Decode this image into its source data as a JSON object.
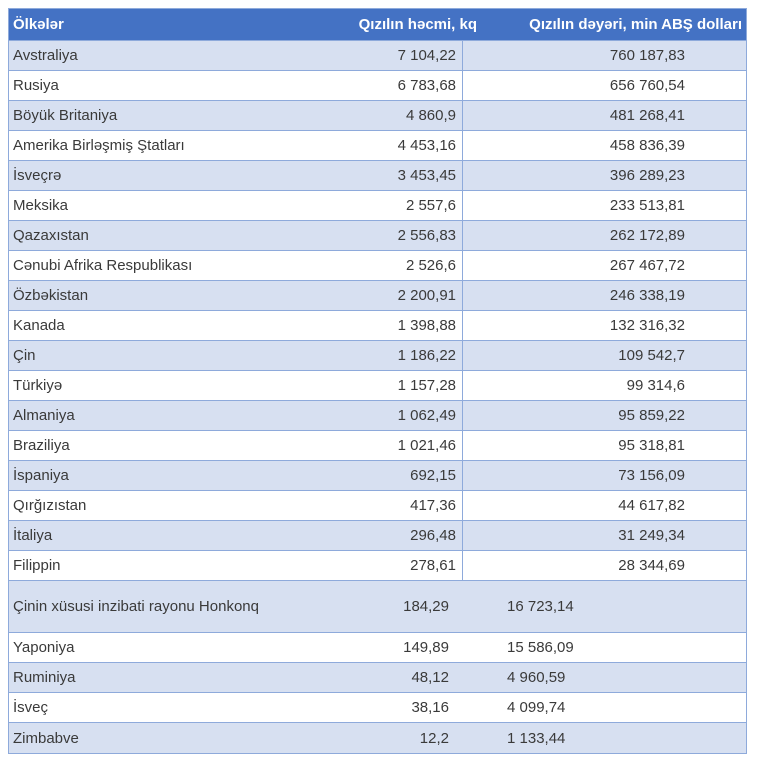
{
  "table": {
    "columns": {
      "country": "Ölkələr",
      "volume": "Qızılın həcmi, kq",
      "value": "Qızılın dəyəri, min ABŞ dolları"
    },
    "rows": [
      {
        "country": "Avstraliya",
        "volume": "7 104,22",
        "value": "760 187,83"
      },
      {
        "country": "Rusiya",
        "volume": "6 783,68",
        "value": "656 760,54"
      },
      {
        "country": "Böyük Britaniya",
        "volume": "4 860,9",
        "value": "481 268,41"
      },
      {
        "country": "Amerika Birləşmiş Ştatları",
        "volume": "4 453,16",
        "value": "458 836,39"
      },
      {
        "country": "İsveçrə",
        "volume": "3 453,45",
        "value": "396 289,23"
      },
      {
        "country": "Meksika",
        "volume": "2 557,6",
        "value": "233 513,81"
      },
      {
        "country": "Qazaxıstan",
        "volume": "2 556,83",
        "value": "262 172,89"
      },
      {
        "country": "Cənubi Afrika Respublikası",
        "volume": "2 526,6",
        "value": "267 467,72"
      },
      {
        "country": "Özbəkistan",
        "volume": "2 200,91",
        "value": "246 338,19"
      },
      {
        "country": "Kanada",
        "volume": "1 398,88",
        "value": "132 316,32"
      },
      {
        "country": "Çin",
        "volume": "1 186,22",
        "value": "109 542,7"
      },
      {
        "country": "Türkiyə",
        "volume": "1 157,28",
        "value": "99 314,6"
      },
      {
        "country": "Almaniya",
        "volume": "1 062,49",
        "value": "95 859,22"
      },
      {
        "country": "Braziliya",
        "volume": "1 021,46",
        "value": "95 318,81"
      },
      {
        "country": "İspaniya",
        "volume": "692,15",
        "value": "73 156,09"
      },
      {
        "country": "Qırğızıstan",
        "volume": "417,36",
        "value": "44 617,82"
      },
      {
        "country": "İtaliya",
        "volume": "296,48",
        "value": "31 249,34"
      },
      {
        "country": "Filippin",
        "volume": "278,61",
        "value": "28 344,69"
      },
      {
        "country": "Çinin xüsusi inzibati rayonu Honkonq",
        "volume": "184,29",
        "value": "16 723,14",
        "tall": true,
        "left_value": true
      },
      {
        "country": "Yaponiya",
        "volume": "149,89",
        "value": "15 586,09",
        "left_value": true
      },
      {
        "country": "Ruminiya",
        "volume": "48,12",
        "value": "4 960,59",
        "left_value": true
      },
      {
        "country": "İsveç",
        "volume": "38,16",
        "value": "4 099,74",
        "left_value": true
      },
      {
        "country": "Zimbabve",
        "volume": "12,2",
        "value": "1 133,44",
        "left_value": true
      }
    ]
  },
  "chart_data": {
    "type": "table",
    "columns": [
      "Ölkələr",
      "Qızılın həcmi, kq",
      "Qızılın dəyəri, min ABŞ dolları"
    ],
    "rows": [
      [
        "Avstraliya",
        7104.22,
        760187.83
      ],
      [
        "Rusiya",
        6783.68,
        656760.54
      ],
      [
        "Böyük Britaniya",
        4860.9,
        481268.41
      ],
      [
        "Amerika Birləşmiş Ştatları",
        4453.16,
        458836.39
      ],
      [
        "İsveçrə",
        3453.45,
        396289.23
      ],
      [
        "Meksika",
        2557.6,
        233513.81
      ],
      [
        "Qazaxıstan",
        2556.83,
        262172.89
      ],
      [
        "Cənubi Afrika Respublikası",
        2526.6,
        267467.72
      ],
      [
        "Özbəkistan",
        2200.91,
        246338.19
      ],
      [
        "Kanada",
        1398.88,
        132316.32
      ],
      [
        "Çin",
        1186.22,
        109542.7
      ],
      [
        "Türkiyə",
        1157.28,
        99314.6
      ],
      [
        "Almaniya",
        1062.49,
        95859.22
      ],
      [
        "Braziliya",
        1021.46,
        95318.81
      ],
      [
        "İspaniya",
        692.15,
        73156.09
      ],
      [
        "Qırğızıstan",
        417.36,
        44617.82
      ],
      [
        "İtaliya",
        296.48,
        31249.34
      ],
      [
        "Filippin",
        278.61,
        28344.69
      ],
      [
        "Çinin xüsusi inzibati rayonu Honkonq",
        184.29,
        16723.14
      ],
      [
        "Yaponiya",
        149.89,
        15586.09
      ],
      [
        "Ruminiya",
        48.12,
        4960.59
      ],
      [
        "İsveç",
        38.16,
        4099.74
      ],
      [
        "Zimbabve",
        12.2,
        1133.44
      ]
    ]
  },
  "colors": {
    "header_bg": "#4472C4",
    "header_text": "#FFFFFF",
    "band_bg": "#D7E0F1",
    "border": "#8EAADB",
    "text": "#3A3A3A"
  }
}
